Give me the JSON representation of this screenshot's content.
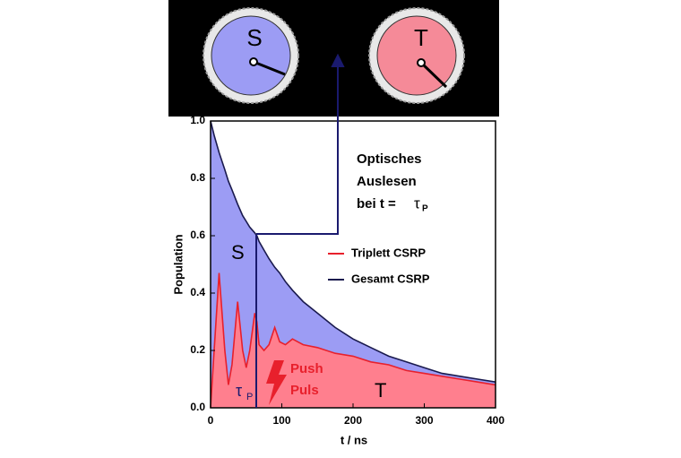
{
  "chart_data": {
    "type": "area",
    "xlabel": "t / ns",
    "ylabel": "Population",
    "x": [
      0,
      5,
      12,
      20,
      25,
      30,
      38,
      45,
      50,
      55,
      62,
      65,
      68,
      75,
      82,
      90,
      97,
      105,
      115,
      130,
      150,
      175,
      200,
      225,
      250,
      275,
      300,
      325,
      350,
      375,
      400
    ],
    "series": [
      {
        "name": "Gesamt CSRP",
        "color": "#1a1a4e",
        "fill": "#9c9cf4",
        "values": [
          1.0,
          0.95,
          0.89,
          0.83,
          0.79,
          0.76,
          0.71,
          0.67,
          0.65,
          0.63,
          0.61,
          0.6,
          0.58,
          0.55,
          0.52,
          0.49,
          0.47,
          0.44,
          0.41,
          0.37,
          0.33,
          0.28,
          0.24,
          0.21,
          0.18,
          0.16,
          0.14,
          0.12,
          0.11,
          0.1,
          0.09
        ]
      },
      {
        "name": "Triplett CSRP",
        "color": "#e8202c",
        "fill": "#ff7f8e",
        "values": [
          0,
          0.2,
          0.47,
          0.2,
          0.08,
          0.15,
          0.37,
          0.2,
          0.14,
          0.2,
          0.33,
          0.3,
          0.22,
          0.2,
          0.22,
          0.28,
          0.23,
          0.22,
          0.24,
          0.22,
          0.21,
          0.19,
          0.18,
          0.16,
          0.15,
          0.13,
          0.12,
          0.11,
          0.1,
          0.09,
          0.08
        ]
      }
    ],
    "xlim": [
      0,
      400
    ],
    "xticks": [
      0,
      100,
      200,
      300,
      400
    ],
    "ylim": [
      0,
      1.0
    ],
    "yticks": [
      {
        "value": 0,
        "label": "0.0"
      },
      {
        "value": 0.2,
        "label": "0.2"
      },
      {
        "value": 0.4,
        "label": "0.4"
      },
      {
        "value": 0.6,
        "label": "0.6"
      },
      {
        "value": 0.8,
        "label": "0.8"
      },
      {
        "value": 1.0,
        "label": "1.0"
      }
    ],
    "annotations": {
      "singlet": "S",
      "triplet": "T",
      "push": "Push",
      "puls": "Puls",
      "tau": "τ",
      "tau_sub": "P",
      "readout_1": "Optisches",
      "readout_2": "Auslesen",
      "readout_3": "bei t = ",
      "readout_tau": "τ",
      "readout_tau_sub": "P"
    },
    "clocks": [
      "S",
      "T"
    ]
  }
}
